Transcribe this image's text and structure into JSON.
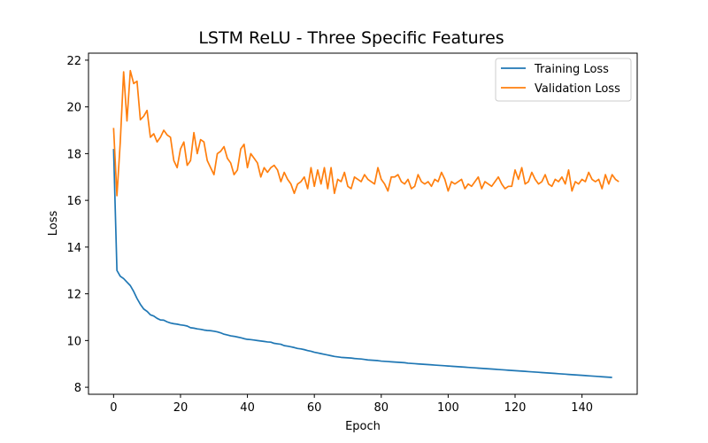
{
  "chart_data": {
    "type": "line",
    "title": "LSTM ReLU - Three Specific Features",
    "xlabel": "Epoch",
    "ylabel": "Loss",
    "xlim": [
      -7.5,
      156.5
    ],
    "ylim": [
      7.7,
      22.3
    ],
    "xticks": [
      0,
      20,
      40,
      60,
      80,
      100,
      120,
      140
    ],
    "yticks": [
      8,
      10,
      12,
      14,
      16,
      18,
      20,
      22
    ],
    "grid": false,
    "legend": "top-right",
    "series": [
      {
        "name": "Training Loss",
        "color": "#1f77b4",
        "values": [
          18.2,
          13.0,
          12.75,
          12.65,
          12.5,
          12.35,
          12.1,
          11.8,
          11.55,
          11.35,
          11.25,
          11.1,
          11.05,
          10.95,
          10.88,
          10.87,
          10.8,
          10.75,
          10.72,
          10.7,
          10.67,
          10.65,
          10.62,
          10.55,
          10.53,
          10.5,
          10.48,
          10.45,
          10.43,
          10.42,
          10.4,
          10.37,
          10.33,
          10.27,
          10.24,
          10.2,
          10.18,
          10.15,
          10.12,
          10.08,
          10.05,
          10.04,
          10.02,
          10.0,
          9.98,
          9.96,
          9.94,
          9.93,
          9.88,
          9.86,
          9.84,
          9.78,
          9.76,
          9.73,
          9.7,
          9.66,
          9.64,
          9.61,
          9.57,
          9.54,
          9.5,
          9.47,
          9.44,
          9.41,
          9.38,
          9.35,
          9.32,
          9.3,
          9.28,
          9.27,
          9.26,
          9.25,
          9.23,
          9.22,
          9.21,
          9.19,
          9.17,
          9.16,
          9.15,
          9.14,
          9.12,
          9.11,
          9.1,
          9.09,
          9.08,
          9.07,
          9.06,
          9.05,
          9.03,
          9.02,
          9.01,
          9.0,
          8.99,
          8.98,
          8.97,
          8.96,
          8.95,
          8.94,
          8.93,
          8.92,
          8.91,
          8.9,
          8.89,
          8.88,
          8.87,
          8.86,
          8.85,
          8.84,
          8.83,
          8.82,
          8.81,
          8.8,
          8.79,
          8.78,
          8.77,
          8.76,
          8.75,
          8.74,
          8.73,
          8.72,
          8.71,
          8.7,
          8.69,
          8.68,
          8.67,
          8.66,
          8.65,
          8.64,
          8.63,
          8.62,
          8.61,
          8.6,
          8.59,
          8.58,
          8.57,
          8.56,
          8.55,
          8.54,
          8.53,
          8.52,
          8.51,
          8.5,
          8.49,
          8.48,
          8.47,
          8.46,
          8.45,
          8.44,
          8.43,
          8.42
        ]
      },
      {
        "name": "Validation Loss",
        "color": "#ff7f0e",
        "values": [
          19.1,
          16.2,
          18.5,
          21.5,
          19.4,
          21.55,
          21.0,
          21.1,
          19.45,
          19.6,
          19.85,
          18.7,
          18.85,
          18.5,
          18.7,
          19.0,
          18.8,
          18.7,
          17.7,
          17.4,
          18.2,
          18.5,
          17.5,
          17.7,
          18.9,
          18.0,
          18.6,
          18.5,
          17.7,
          17.4,
          17.1,
          18.0,
          18.1,
          18.3,
          17.8,
          17.6,
          17.1,
          17.3,
          18.2,
          18.4,
          17.4,
          18.0,
          17.8,
          17.6,
          17.0,
          17.4,
          17.2,
          17.4,
          17.5,
          17.3,
          16.8,
          17.2,
          16.9,
          16.7,
          16.3,
          16.7,
          16.8,
          17.0,
          16.5,
          17.4,
          16.6,
          17.3,
          16.7,
          17.4,
          16.5,
          17.4,
          16.3,
          16.9,
          16.8,
          17.2,
          16.6,
          16.5,
          17.0,
          16.9,
          16.8,
          17.1,
          16.9,
          16.8,
          16.7,
          17.4,
          16.9,
          16.7,
          16.4,
          17.0,
          17.0,
          17.1,
          16.8,
          16.7,
          16.9,
          16.5,
          16.6,
          17.1,
          16.8,
          16.7,
          16.8,
          16.6,
          16.9,
          16.8,
          17.2,
          16.9,
          16.4,
          16.8,
          16.7,
          16.8,
          16.9,
          16.5,
          16.7,
          16.6,
          16.8,
          17.0,
          16.5,
          16.8,
          16.7,
          16.6,
          16.8,
          17.0,
          16.7,
          16.5,
          16.6,
          16.6,
          17.3,
          16.9,
          17.4,
          16.7,
          16.8,
          17.2,
          16.9,
          16.7,
          16.8,
          17.1,
          16.7,
          16.6,
          16.9,
          16.8,
          17.0,
          16.7,
          17.3,
          16.4,
          16.8,
          16.7,
          16.9,
          16.8,
          17.2,
          16.9,
          16.8,
          16.9,
          16.5,
          17.1,
          16.7,
          17.1,
          16.9,
          16.8
        ]
      }
    ]
  }
}
